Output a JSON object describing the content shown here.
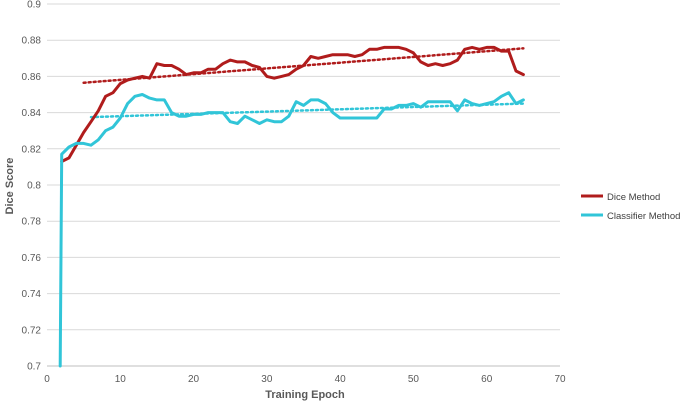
{
  "chart_data": {
    "type": "line",
    "xlabel": "Training Epoch",
    "ylabel": "Dice Score",
    "xlim": [
      0,
      70
    ],
    "ylim": [
      0.7,
      0.9
    ],
    "xticks": [
      "0",
      "10",
      "20",
      "30",
      "40",
      "50",
      "60",
      "70"
    ],
    "yticks": [
      "0.7",
      "0.72",
      "0.74",
      "0.76",
      "0.78",
      "0.8",
      "0.82",
      "0.84",
      "0.86",
      "0.88",
      "0.9"
    ],
    "grid": "horizontal",
    "legend_position": "right",
    "series": [
      {
        "name": "Dice Method",
        "color": "#b01c1c",
        "x": [
          2,
          3,
          4,
          5,
          6,
          7,
          8,
          9,
          10,
          11,
          12,
          13,
          14,
          15,
          16,
          17,
          18,
          19,
          20,
          21,
          22,
          23,
          24,
          25,
          26,
          27,
          28,
          29,
          30,
          31,
          32,
          33,
          34,
          35,
          36,
          37,
          38,
          39,
          40,
          41,
          42,
          43,
          44,
          45,
          46,
          47,
          48,
          49,
          50,
          51,
          52,
          53,
          54,
          55,
          56,
          57,
          58,
          59,
          60,
          61,
          62,
          63,
          64,
          65
        ],
        "y": [
          0.813,
          0.815,
          0.822,
          0.829,
          0.835,
          0.841,
          0.849,
          0.851,
          0.856,
          0.858,
          0.859,
          0.86,
          0.859,
          0.867,
          0.866,
          0.866,
          0.864,
          0.861,
          0.862,
          0.862,
          0.864,
          0.864,
          0.867,
          0.869,
          0.868,
          0.868,
          0.866,
          0.865,
          0.86,
          0.859,
          0.86,
          0.861,
          0.864,
          0.866,
          0.871,
          0.87,
          0.871,
          0.872,
          0.872,
          0.872,
          0.871,
          0.872,
          0.875,
          0.875,
          0.876,
          0.876,
          0.876,
          0.875,
          0.873,
          0.868,
          0.866,
          0.867,
          0.866,
          0.867,
          0.869,
          0.875,
          0.876,
          0.875,
          0.876,
          0.876,
          0.874,
          0.874,
          0.863,
          0.861
        ]
      },
      {
        "name": "Classifier Method",
        "color": "#31c5d8",
        "x": [
          1.8,
          2,
          3,
          4,
          5,
          6,
          7,
          8,
          9,
          10,
          11,
          12,
          13,
          14,
          15,
          16,
          17,
          18,
          19,
          20,
          21,
          22,
          23,
          24,
          25,
          26,
          27,
          28,
          29,
          30,
          31,
          32,
          33,
          34,
          35,
          36,
          37,
          38,
          39,
          40,
          41,
          42,
          43,
          44,
          45,
          46,
          47,
          48,
          49,
          50,
          51,
          52,
          53,
          54,
          55,
          56,
          57,
          58,
          59,
          60,
          61,
          62,
          63,
          64,
          65
        ],
        "y": [
          0.7,
          0.817,
          0.821,
          0.823,
          0.823,
          0.822,
          0.825,
          0.83,
          0.832,
          0.837,
          0.845,
          0.849,
          0.85,
          0.848,
          0.847,
          0.847,
          0.84,
          0.838,
          0.838,
          0.839,
          0.839,
          0.84,
          0.84,
          0.84,
          0.835,
          0.834,
          0.838,
          0.836,
          0.834,
          0.836,
          0.835,
          0.835,
          0.838,
          0.846,
          0.844,
          0.847,
          0.847,
          0.845,
          0.84,
          0.837,
          0.837,
          0.837,
          0.837,
          0.837,
          0.837,
          0.842,
          0.842,
          0.844,
          0.844,
          0.845,
          0.843,
          0.846,
          0.846,
          0.846,
          0.846,
          0.841,
          0.847,
          0.845,
          0.844,
          0.845,
          0.846,
          0.849,
          0.851,
          0.845,
          0.847
        ]
      }
    ],
    "trendlines": [
      {
        "series": "Dice Method",
        "x": [
          5,
          65
        ],
        "y": [
          0.8565,
          0.8755
        ]
      },
      {
        "series": "Classifier Method",
        "x": [
          6,
          65
        ],
        "y": [
          0.8375,
          0.845
        ]
      }
    ]
  }
}
